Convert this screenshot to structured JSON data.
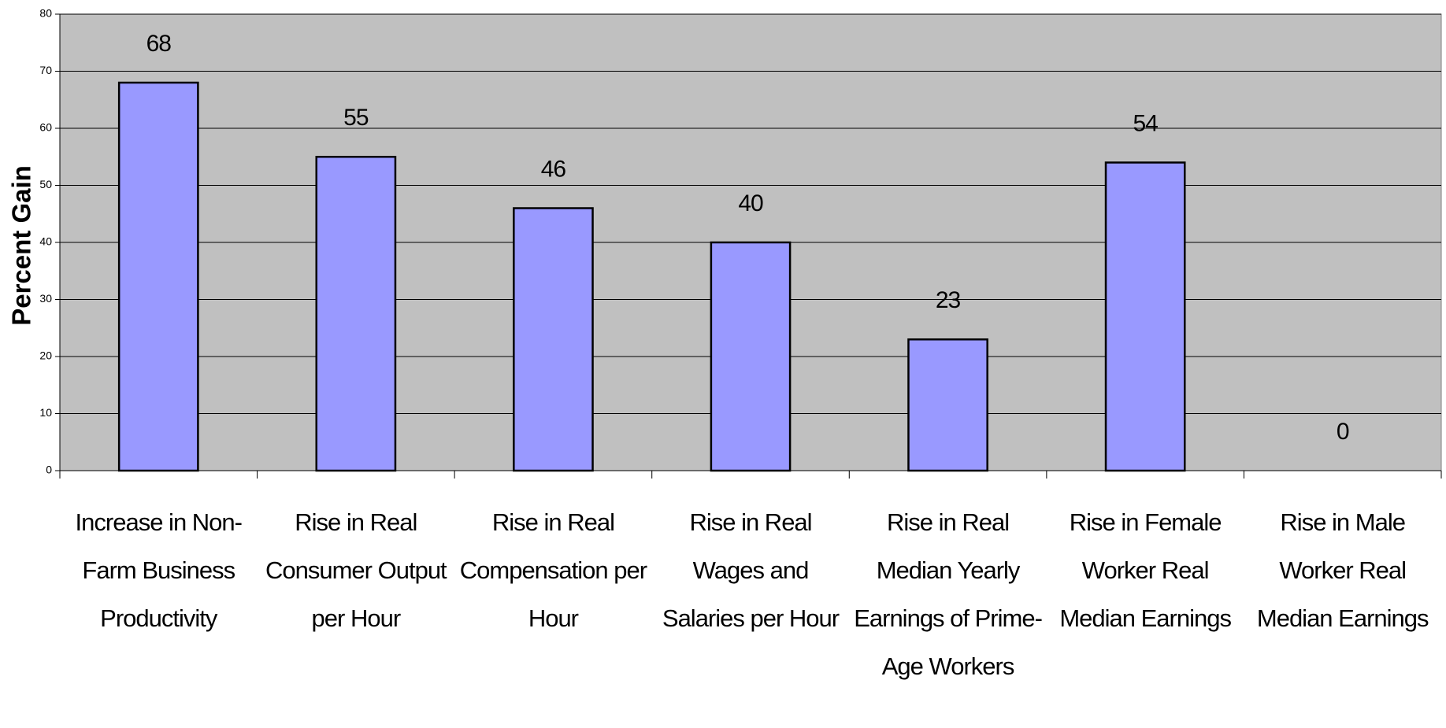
{
  "chart_data": {
    "type": "bar",
    "y_axis_label": "Percent Gain",
    "categories": [
      "Increase in Non-Farm Business Productivity",
      "Rise in Real Consumer Output per Hour",
      "Rise in Real Compensation per Hour",
      "Rise in Real Wages and Salaries per Hour",
      "Rise in Real Median Yearly Earnings of Prime-Age Workers",
      "Rise in Female Worker Real Median Earnings",
      "Rise in Male Worker Real Median Earnings"
    ],
    "values": [
      68,
      55,
      46,
      40,
      23,
      54,
      0
    ],
    "color": "#9999ff",
    "ylim": [
      0,
      80
    ],
    "yticks": [
      0,
      10,
      20,
      30,
      40,
      50,
      60,
      70,
      80
    ],
    "grid": true
  }
}
